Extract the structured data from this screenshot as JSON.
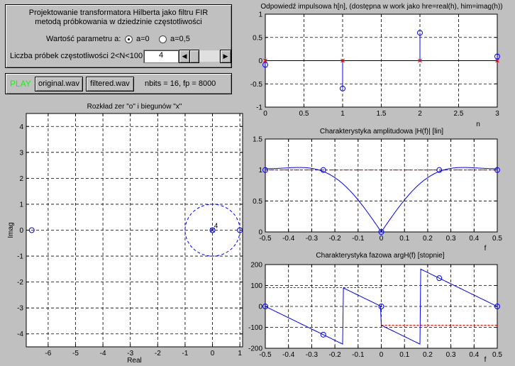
{
  "top_panel": {
    "title_line1": "Projektowanie transformatora Hilberta jako filtru FIR",
    "title_line2": "metodą próbkowania w dziedzinie częstotliwości",
    "param_label": "Wartość parametru a:",
    "radio_a0_label": "a=0",
    "radio_a05_label": "a=0,5",
    "radio_selected": "a=0",
    "samples_label": "Liczba próbek częstotliwości 2<N<100",
    "samples_value": "4"
  },
  "play_panel": {
    "play_label": "PLAY",
    "original_button": "original.wav",
    "filtered_button": "filtered.wav",
    "info": "nbits = 16,   fp = 8000"
  },
  "chart_data": [
    {
      "type": "scatter",
      "title": "Rozkład zer \"o\" i biegunów \"x\"",
      "xlabel": "Real",
      "ylabel": "Imag",
      "xlim": [
        -6.8,
        1.1
      ],
      "ylim": [
        -4.5,
        4.5
      ],
      "xticks": [
        -6,
        -5,
        -4,
        -3,
        -2,
        -1,
        0,
        1
      ],
      "yticks": [
        -4,
        -3,
        -2,
        -1,
        0,
        1,
        2,
        3,
        4
      ],
      "grid": true,
      "zeros": [
        [
          -6.6,
          0
        ],
        [
          0,
          0
        ],
        [
          1,
          0
        ]
      ],
      "poles": [
        [
          0,
          0
        ]
      ],
      "pole_multiplicity_label": "4",
      "unit_circle": true
    },
    {
      "type": "stem",
      "title": "Odpowiedź impulsowa h[n], (dostępna w work jako hre=real(h), him=imag(h))",
      "xlabel": "n",
      "xlim": [
        0,
        3
      ],
      "ylim": [
        -1,
        1
      ],
      "xticks": [
        0,
        0.5,
        1,
        1.5,
        2,
        2.5,
        3
      ],
      "yticks": [
        -1,
        -0.5,
        0,
        0.5,
        1
      ],
      "grid": true,
      "x": [
        0,
        1,
        2,
        3
      ],
      "real": [
        -0.09,
        -0.6,
        0.6,
        0.09
      ],
      "imag": [
        0,
        0,
        0,
        0
      ]
    },
    {
      "type": "line",
      "title": "Charakterystyka amplitudowa |H(f)| [lin]",
      "xlabel": "f",
      "xlim": [
        -0.5,
        0.5
      ],
      "ylim": [
        0,
        1.5
      ],
      "xticks": [
        -0.5,
        -0.4,
        -0.3,
        -0.2,
        -0.1,
        0,
        0.1,
        0.2,
        0.3,
        0.4,
        0.5
      ],
      "yticks": [
        0,
        0.5,
        1,
        1.5
      ],
      "grid": true,
      "reference_level": 1,
      "samples_f": [
        -0.5,
        -0.25,
        0,
        0.25,
        0.5
      ],
      "samples_val": [
        1,
        1,
        0,
        1,
        1
      ],
      "h": [
        -0.09,
        -0.6,
        0.6,
        0.09
      ]
    },
    {
      "type": "line",
      "title": "Charakterystyka fazowa argH(f) [stopnie]",
      "xlabel": "f",
      "xlim": [
        -0.5,
        0.5
      ],
      "ylim": [
        -200,
        200
      ],
      "xticks": [
        -0.5,
        -0.4,
        -0.3,
        -0.2,
        -0.1,
        0,
        0.1,
        0.2,
        0.3,
        0.4,
        0.5
      ],
      "yticks": [
        -200,
        -100,
        0,
        100,
        200
      ],
      "grid": true,
      "reference_pos": 90,
      "reference_neg": -90,
      "samples_f": [
        -0.5,
        -0.25,
        0,
        0.25,
        0.5
      ],
      "samples_val": [
        0,
        -135,
        0,
        135,
        0
      ]
    }
  ],
  "colors": {
    "trace": "#0000ff",
    "reference": "#ff0000",
    "play": "#00ff00",
    "background": "#c0c0c0"
  }
}
